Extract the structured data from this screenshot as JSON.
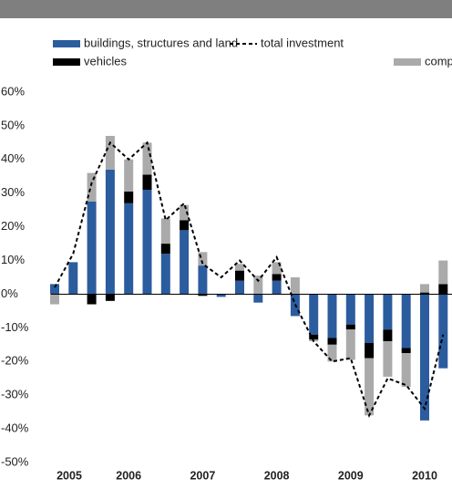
{
  "chart_data": {
    "type": "stacked-bar-line",
    "categories": [
      "2005",
      null,
      null,
      null,
      "2006",
      null,
      null,
      null,
      "2007",
      null,
      null,
      null,
      "2008",
      null,
      null,
      null,
      "2009",
      null,
      null,
      null,
      "2010",
      null
    ],
    "series": [
      {
        "name": "buildings, structures and land",
        "color": "#2b5c9e",
        "type": "bar",
        "values": [
          3,
          9.5,
          27.5,
          37,
          27,
          31,
          12,
          19,
          8.5,
          -0.8,
          4,
          -2.5,
          4,
          -6.5,
          -12,
          -13,
          -9,
          -14.5,
          -10.5,
          -16,
          -37.5,
          -22
        ]
      },
      {
        "name": "vehicles",
        "color": "#000000",
        "type": "bar",
        "values": [
          0,
          0,
          -3,
          -2,
          3.5,
          4.5,
          3,
          3,
          -0.5,
          0,
          3,
          0,
          2,
          0,
          -1.5,
          -2,
          -1.5,
          -4.5,
          -3.5,
          -1.5,
          0.5,
          3
        ]
      },
      {
        "name": "computers, machinery and other equipment",
        "color": "#aaaaaa",
        "type": "bar",
        "values": [
          -3,
          0,
          8.5,
          10,
          9.5,
          9.5,
          7.5,
          4.5,
          4,
          0,
          2,
          5.5,
          3.5,
          5,
          -0.5,
          -5,
          -9,
          -17,
          -10.5,
          -10,
          2.5,
          7
        ]
      },
      {
        "name": "total investment",
        "color": "#000000",
        "type": "line",
        "values": [
          2,
          12,
          33,
          45,
          40,
          45,
          22,
          27,
          9,
          5,
          10,
          4,
          11,
          -3,
          -14,
          -20,
          -19,
          -36,
          -25,
          -27,
          -34,
          -12
        ]
      }
    ],
    "ylim": [
      -52,
      62
    ],
    "yticks": [
      {
        "value": 60,
        "label": "60%"
      },
      {
        "value": 50,
        "label": "50%"
      },
      {
        "value": 40,
        "label": "40%"
      },
      {
        "value": 30,
        "label": "30%"
      },
      {
        "value": 20,
        "label": "20%"
      },
      {
        "value": 10,
        "label": "10%"
      },
      {
        "value": 0,
        "label": "0%"
      },
      {
        "value": -10,
        "label": "-10%"
      },
      {
        "value": -20,
        "label": "-20%"
      },
      {
        "value": -30,
        "label": "-30%"
      },
      {
        "value": -40,
        "label": "-40%"
      },
      {
        "value": -50,
        "label": "-50%"
      }
    ]
  }
}
